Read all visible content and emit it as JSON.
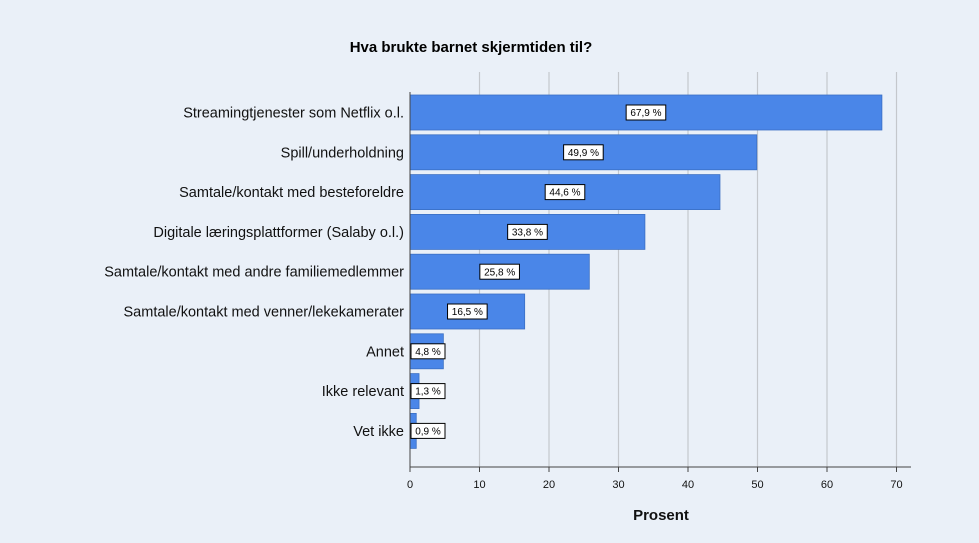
{
  "chart_data": {
    "type": "bar",
    "orientation": "horizontal",
    "title": "Hva brukte barnet skjermtiden til?",
    "xlabel": "Prosent",
    "ylabel": "",
    "xlim": [
      0,
      70
    ],
    "xticks": [
      0,
      10,
      20,
      30,
      40,
      50,
      60,
      70
    ],
    "grid": "vertical",
    "bar_color": "#4a86e8",
    "categories": [
      "Streamingtjenester som Netflix o.l.",
      "Spill/underholdning",
      "Samtale/kontakt med besteforeldre",
      "Digitale læringsplattformer (Salaby o.l.)",
      "Samtale/kontakt med andre familiemedlemmer",
      "Samtale/kontakt med venner/lekekamerater",
      "Annet",
      "Ikke relevant",
      "Vet ikke"
    ],
    "values": [
      67.9,
      49.9,
      44.6,
      33.8,
      25.8,
      16.5,
      4.8,
      1.3,
      0.9
    ],
    "data_labels": [
      "67,9 %",
      "49,9 %",
      "44,6 %",
      "33,8 %",
      "25,8 %",
      "16,5 %",
      "4,8 %",
      "1,3 %",
      "0,9 %"
    ]
  }
}
